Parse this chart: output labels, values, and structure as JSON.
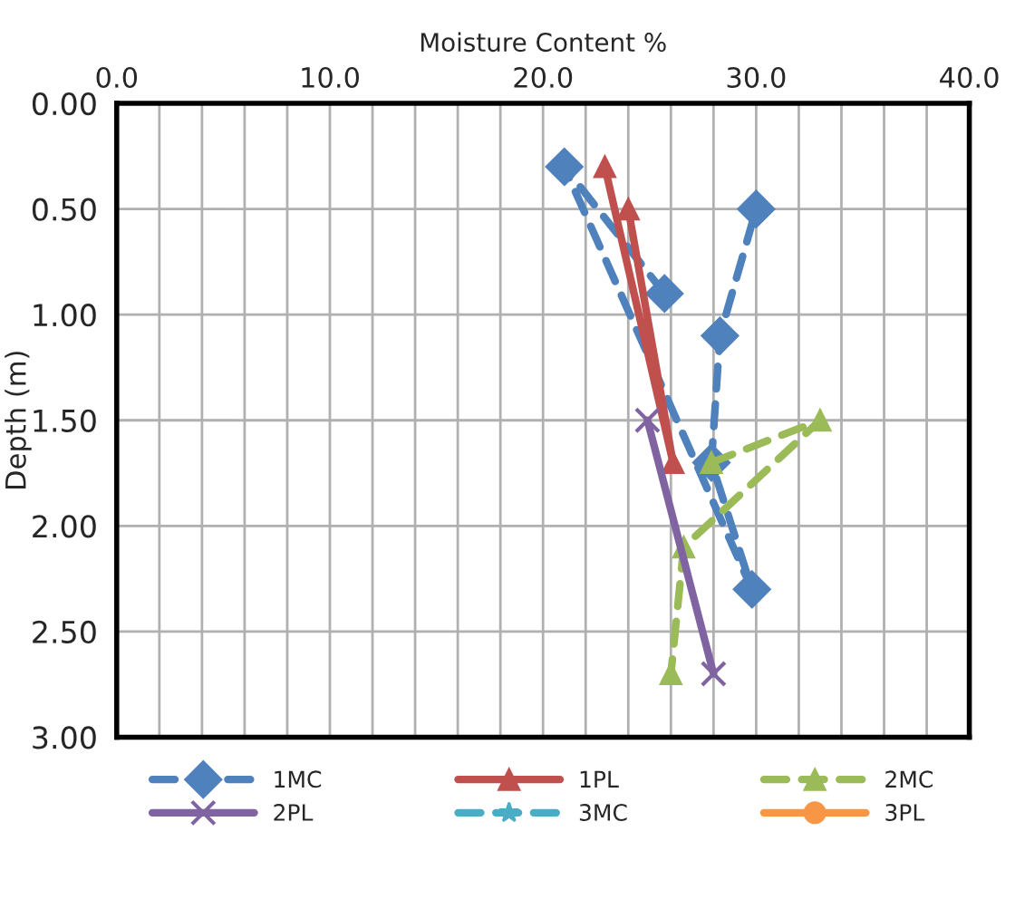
{
  "chart_data": {
    "type": "line",
    "xlabel": "Moisture Content %",
    "ylabel": "Depth (m)",
    "xlim": [
      0,
      40
    ],
    "xticks": [
      {
        "value": 0,
        "label": "0.0"
      },
      {
        "value": 2,
        "label": null
      },
      {
        "value": 4,
        "label": null
      },
      {
        "value": 6,
        "label": null
      },
      {
        "value": 8,
        "label": null
      },
      {
        "value": 10,
        "label": "10.0"
      },
      {
        "value": 12,
        "label": null
      },
      {
        "value": 14,
        "label": null
      },
      {
        "value": 16,
        "label": null
      },
      {
        "value": 18,
        "label": null
      },
      {
        "value": 20,
        "label": "20.0"
      },
      {
        "value": 22,
        "label": null
      },
      {
        "value": 24,
        "label": null
      },
      {
        "value": 26,
        "label": null
      },
      {
        "value": 28,
        "label": null
      },
      {
        "value": 30,
        "label": "30.0"
      },
      {
        "value": 32,
        "label": null
      },
      {
        "value": 34,
        "label": null
      },
      {
        "value": 36,
        "label": null
      },
      {
        "value": 38,
        "label": null
      },
      {
        "value": 40,
        "label": "40.0"
      }
    ],
    "ylim": [
      3.0,
      0.0
    ],
    "yticks": [
      {
        "value": 0,
        "label": "0.00"
      },
      {
        "value": 0.5,
        "label": "0.50"
      },
      {
        "value": 1.0,
        "label": "1.00"
      },
      {
        "value": 1.5,
        "label": "1.50"
      },
      {
        "value": 2.0,
        "label": "2.00"
      },
      {
        "value": 2.5,
        "label": "2.50"
      },
      {
        "value": 3.0,
        "label": "3.00"
      }
    ],
    "grid": true,
    "legend": "bottom",
    "series": [
      {
        "name": "1MC",
        "color": "#4f81bd",
        "marker": "diamond",
        "line_style": "dashed",
        "x": [
          25.7,
          21.0,
          29.8,
          27.9,
          28.3,
          30.0
        ],
        "values": [
          0.9,
          0.3,
          2.3,
          1.7,
          1.1,
          0.5
        ]
      },
      {
        "name": "1PL",
        "color": "#c0504d",
        "marker": "triangle",
        "line_style": "solid",
        "x": [
          22.9,
          26.1,
          24.0
        ],
        "values": [
          0.3,
          1.7,
          0.5
        ]
      },
      {
        "name": "2MC",
        "color": "#9bbb59",
        "marker": "triangle",
        "line_style": "dashed",
        "x": [
          27.9,
          33.0,
          26.6,
          26.0
        ],
        "values": [
          1.7,
          1.5,
          2.1,
          2.7
        ]
      },
      {
        "name": "2PL",
        "color": "#8064a2",
        "marker": "cross",
        "line_style": "solid",
        "x": [
          24.9,
          28.0
        ],
        "values": [
          1.5,
          2.7
        ]
      },
      {
        "name": "3MC",
        "color": "#4bacc6",
        "marker": "star",
        "line_style": "dashed"
      },
      {
        "name": "3PL",
        "color": "#f79646",
        "marker": "circle",
        "line_style": "solid"
      }
    ]
  }
}
